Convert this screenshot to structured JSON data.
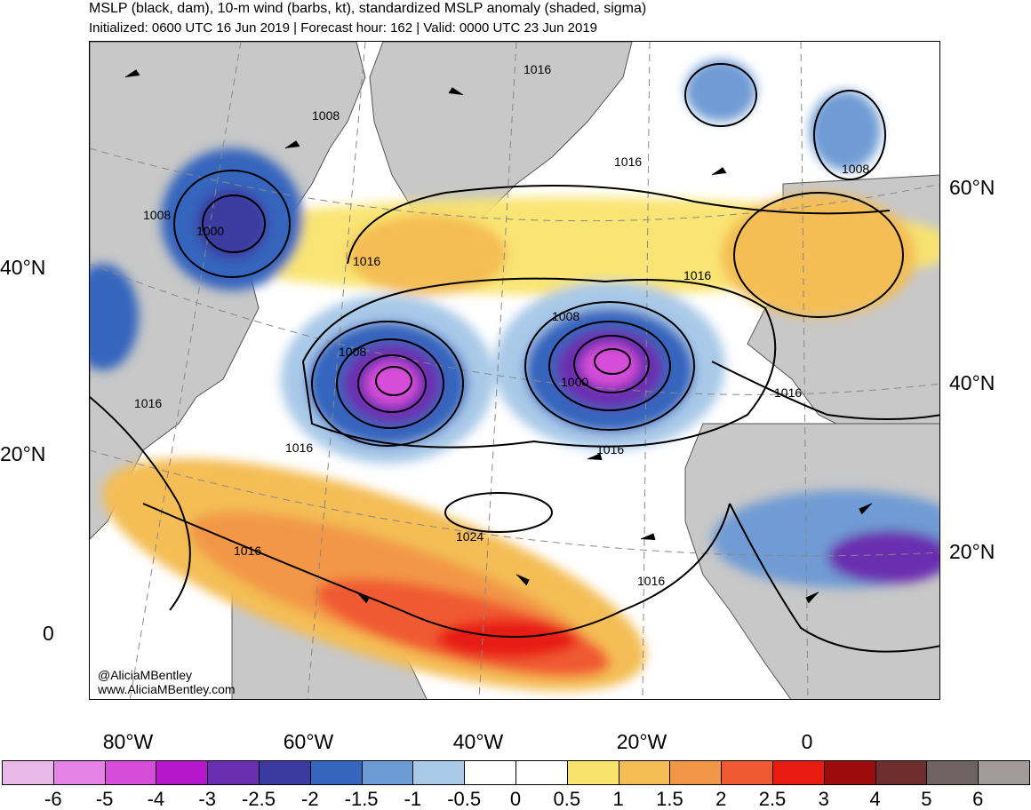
{
  "header": {
    "title": "MSLP (black, dam), 10-m wind (barbs, kt), standardized MSLP anomaly (shaded, sigma)",
    "subtitle": "Initialized: 0600 UTC 16 Jun 2019 | Forecast hour: 162 | Valid: 0000 UTC 23 Jun 2019"
  },
  "map": {
    "lat_labels_left": [
      "40°N",
      "20°N",
      "0"
    ],
    "lat_labels_right": [
      "60°N",
      "40°N",
      "20°N"
    ],
    "lon_labels": [
      "80°W",
      "60°W",
      "40°W",
      "20°W",
      "0"
    ],
    "isobar_labels": [
      "1016",
      "1008",
      "1016",
      "1008",
      "1000",
      "1016",
      "1016",
      "1008",
      "1008",
      "1000",
      "1008",
      "1016",
      "1016",
      "1016",
      "1016",
      "1024",
      "1016",
      "1016"
    ],
    "credit_handle": "@AliciaMBentley",
    "credit_site": "www.AliciaMBentley.com",
    "colors": {
      "land": "#c8c8c8",
      "ocean": "#ffffff",
      "contour": "#000000",
      "coast": "#555555"
    }
  },
  "colorbar": {
    "ticks": [
      "-6",
      "-5",
      "-4",
      "-3",
      "-2.5",
      "-2",
      "-1.5",
      "-1",
      "-0.5",
      "0",
      "0.5",
      "1",
      "1.5",
      "2",
      "2.5",
      "3",
      "4",
      "5",
      "6"
    ],
    "colors": [
      "#e8b8e8",
      "#e582e5",
      "#d64dd9",
      "#b516cc",
      "#6a2fb0",
      "#3a3aa0",
      "#3565bd",
      "#6f9bd4",
      "#a8c9e8",
      "#ffffff",
      "#ffffff",
      "#f9e46b",
      "#f4bd55",
      "#f29747",
      "#f05a32",
      "#e81a12",
      "#9c0c0c",
      "#6e2e2e",
      "#6e6262",
      "#a09a9a"
    ]
  }
}
